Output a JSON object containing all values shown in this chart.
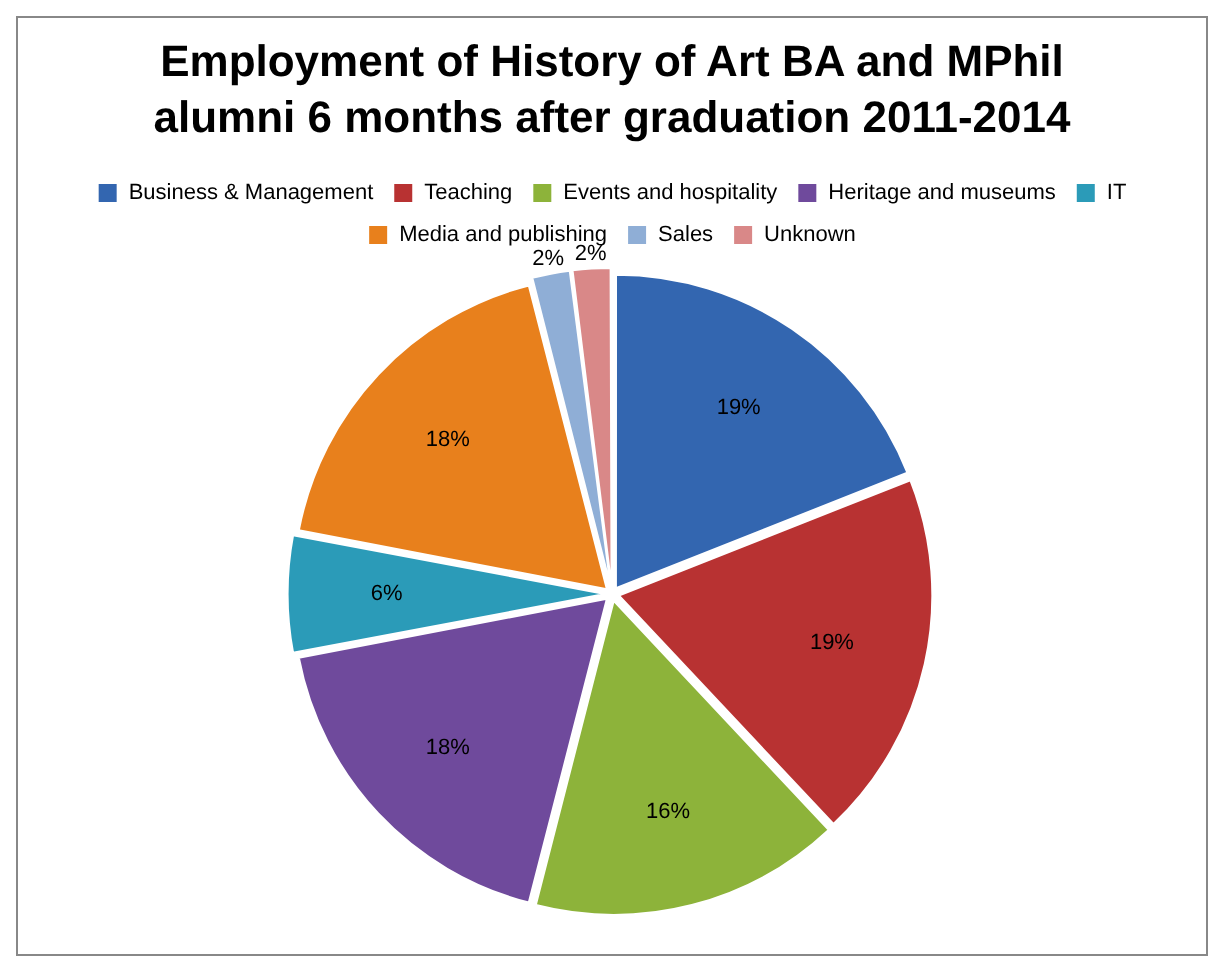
{
  "chart_data": {
    "type": "pie",
    "title": "Employment of History of Art BA and MPhil alumni 6 months after graduation 2011-2014",
    "categories": [
      "Business & Management",
      "Teaching",
      "Events and hospitality",
      "Heritage and museums",
      "IT",
      "Media and publishing",
      "Sales",
      "Unknown"
    ],
    "values": [
      19,
      19,
      16,
      18,
      6,
      18,
      2,
      2
    ],
    "colors": [
      "#3366b0",
      "#b83232",
      "#8db33a",
      "#6f4a9c",
      "#2b9bb8",
      "#e8801c",
      "#8faed6",
      "#d98888"
    ],
    "value_labels": [
      "19%",
      "19%",
      "16%",
      "18%",
      "6%",
      "18%",
      "2%",
      "2%"
    ],
    "legend": "top"
  }
}
